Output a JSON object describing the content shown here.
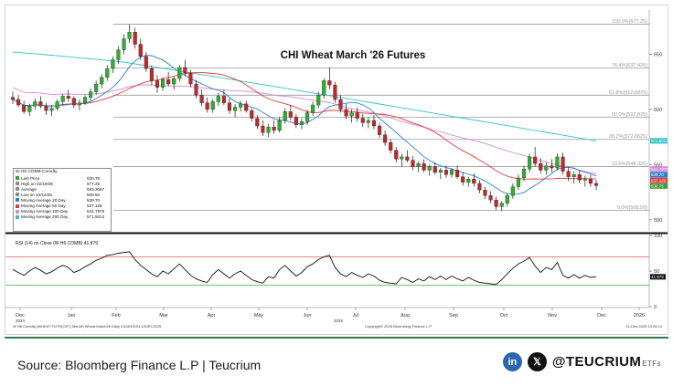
{
  "chart_data": [
    {
      "type": "candlestick",
      "title": "CHI Wheat March '26 Futures",
      "x_tick_labels": [
        "Dec",
        "Jan",
        "Feb",
        "Mar",
        "Apr",
        "May",
        "Jun",
        "Jul",
        "Aug",
        "Sep",
        "Oct",
        "Nov",
        "Dec",
        "2026"
      ],
      "x_year_labels": [
        "2024",
        "2025"
      ],
      "y_tick_labels": [
        "650",
        "600",
        "550",
        "500"
      ],
      "ylim": [
        490,
        690
      ],
      "fibonacci_levels": [
        {
          "label": "100.0%(677.25)",
          "value": 677.25
        },
        {
          "label": "76.4%(637.425)",
          "value": 637.425
        },
        {
          "label": "61.8%(612.8875)",
          "value": 612.8875
        },
        {
          "label": "50.0%(592.875)",
          "value": 592.875
        },
        {
          "label": "38.2%(572.8625)",
          "value": 572.8625
        },
        {
          "label": "23.6%(548.325)",
          "value": 548.325
        },
        {
          "label": "0.0%(508.50)",
          "value": 508.5
        }
      ],
      "candles": [
        {
          "o": 611,
          "h": 616,
          "l": 605,
          "c": 609
        },
        {
          "o": 609,
          "h": 613,
          "l": 602,
          "c": 604
        },
        {
          "o": 604,
          "h": 608,
          "l": 596,
          "c": 598
        },
        {
          "o": 598,
          "h": 605,
          "l": 594,
          "c": 603
        },
        {
          "o": 603,
          "h": 610,
          "l": 600,
          "c": 607
        },
        {
          "o": 607,
          "h": 612,
          "l": 601,
          "c": 603
        },
        {
          "o": 603,
          "h": 606,
          "l": 595,
          "c": 599
        },
        {
          "o": 599,
          "h": 604,
          "l": 594,
          "c": 601
        },
        {
          "o": 601,
          "h": 609,
          "l": 599,
          "c": 607
        },
        {
          "o": 607,
          "h": 614,
          "l": 604,
          "c": 612
        },
        {
          "o": 612,
          "h": 618,
          "l": 607,
          "c": 610
        },
        {
          "o": 610,
          "h": 612,
          "l": 601,
          "c": 604
        },
        {
          "o": 604,
          "h": 609,
          "l": 599,
          "c": 606
        },
        {
          "o": 606,
          "h": 613,
          "l": 604,
          "c": 611
        },
        {
          "o": 611,
          "h": 619,
          "l": 608,
          "c": 616
        },
        {
          "o": 616,
          "h": 626,
          "l": 613,
          "c": 623
        },
        {
          "o": 623,
          "h": 632,
          "l": 619,
          "c": 629
        },
        {
          "o": 629,
          "h": 640,
          "l": 626,
          "c": 637
        },
        {
          "o": 637,
          "h": 648,
          "l": 633,
          "c": 645
        },
        {
          "o": 645,
          "h": 657,
          "l": 641,
          "c": 654
        },
        {
          "o": 654,
          "h": 668,
          "l": 650,
          "c": 664
        },
        {
          "o": 664,
          "h": 677,
          "l": 660,
          "c": 670
        },
        {
          "o": 670,
          "h": 674,
          "l": 655,
          "c": 659
        },
        {
          "o": 659,
          "h": 664,
          "l": 645,
          "c": 648
        },
        {
          "o": 648,
          "h": 652,
          "l": 634,
          "c": 637
        },
        {
          "o": 637,
          "h": 640,
          "l": 622,
          "c": 626
        },
        {
          "o": 626,
          "h": 631,
          "l": 615,
          "c": 620
        },
        {
          "o": 620,
          "h": 629,
          "l": 617,
          "c": 627
        },
        {
          "o": 627,
          "h": 634,
          "l": 621,
          "c": 623
        },
        {
          "o": 623,
          "h": 630,
          "l": 618,
          "c": 628
        },
        {
          "o": 628,
          "h": 640,
          "l": 625,
          "c": 638
        },
        {
          "o": 638,
          "h": 645,
          "l": 630,
          "c": 633
        },
        {
          "o": 633,
          "h": 636,
          "l": 620,
          "c": 623
        },
        {
          "o": 623,
          "h": 627,
          "l": 610,
          "c": 613
        },
        {
          "o": 613,
          "h": 618,
          "l": 603,
          "c": 606
        },
        {
          "o": 606,
          "h": 611,
          "l": 597,
          "c": 600
        },
        {
          "o": 600,
          "h": 609,
          "l": 597,
          "c": 607
        },
        {
          "o": 607,
          "h": 615,
          "l": 603,
          "c": 612
        },
        {
          "o": 612,
          "h": 618,
          "l": 604,
          "c": 606
        },
        {
          "o": 606,
          "h": 610,
          "l": 596,
          "c": 599
        },
        {
          "o": 599,
          "h": 605,
          "l": 593,
          "c": 602
        },
        {
          "o": 602,
          "h": 608,
          "l": 598,
          "c": 605
        },
        {
          "o": 605,
          "h": 608,
          "l": 597,
          "c": 599
        },
        {
          "o": 599,
          "h": 601,
          "l": 589,
          "c": 592
        },
        {
          "o": 592,
          "h": 595,
          "l": 582,
          "c": 585
        },
        {
          "o": 585,
          "h": 590,
          "l": 576,
          "c": 579
        },
        {
          "o": 579,
          "h": 587,
          "l": 575,
          "c": 584
        },
        {
          "o": 584,
          "h": 590,
          "l": 578,
          "c": 581
        },
        {
          "o": 581,
          "h": 593,
          "l": 579,
          "c": 590
        },
        {
          "o": 590,
          "h": 601,
          "l": 587,
          "c": 598
        },
        {
          "o": 598,
          "h": 604,
          "l": 590,
          "c": 593
        },
        {
          "o": 593,
          "h": 596,
          "l": 583,
          "c": 586
        },
        {
          "o": 586,
          "h": 592,
          "l": 582,
          "c": 589
        },
        {
          "o": 589,
          "h": 600,
          "l": 586,
          "c": 597
        },
        {
          "o": 597,
          "h": 607,
          "l": 594,
          "c": 604
        },
        {
          "o": 604,
          "h": 616,
          "l": 601,
          "c": 613
        },
        {
          "o": 613,
          "h": 628,
          "l": 610,
          "c": 626
        },
        {
          "o": 626,
          "h": 638,
          "l": 618,
          "c": 622
        },
        {
          "o": 622,
          "h": 625,
          "l": 606,
          "c": 609
        },
        {
          "o": 609,
          "h": 613,
          "l": 597,
          "c": 600
        },
        {
          "o": 600,
          "h": 605,
          "l": 591,
          "c": 594
        },
        {
          "o": 594,
          "h": 600,
          "l": 588,
          "c": 597
        },
        {
          "o": 597,
          "h": 602,
          "l": 589,
          "c": 592
        },
        {
          "o": 592,
          "h": 596,
          "l": 584,
          "c": 588
        },
        {
          "o": 588,
          "h": 593,
          "l": 583,
          "c": 590
        },
        {
          "o": 590,
          "h": 595,
          "l": 582,
          "c": 585
        },
        {
          "o": 585,
          "h": 588,
          "l": 574,
          "c": 577
        },
        {
          "o": 577,
          "h": 581,
          "l": 567,
          "c": 570
        },
        {
          "o": 570,
          "h": 573,
          "l": 560,
          "c": 563
        },
        {
          "o": 563,
          "h": 566,
          "l": 552,
          "c": 555
        },
        {
          "o": 555,
          "h": 560,
          "l": 548,
          "c": 557
        },
        {
          "o": 557,
          "h": 563,
          "l": 552,
          "c": 554
        },
        {
          "o": 554,
          "h": 558,
          "l": 545,
          "c": 548
        },
        {
          "o": 548,
          "h": 553,
          "l": 543,
          "c": 551
        },
        {
          "o": 551,
          "h": 555,
          "l": 543,
          "c": 545
        },
        {
          "o": 545,
          "h": 550,
          "l": 540,
          "c": 548
        },
        {
          "o": 548,
          "h": 552,
          "l": 541,
          "c": 543
        },
        {
          "o": 543,
          "h": 547,
          "l": 537,
          "c": 545
        },
        {
          "o": 545,
          "h": 549,
          "l": 538,
          "c": 541
        },
        {
          "o": 541,
          "h": 547,
          "l": 538,
          "c": 545
        },
        {
          "o": 545,
          "h": 549,
          "l": 537,
          "c": 539
        },
        {
          "o": 539,
          "h": 543,
          "l": 531,
          "c": 534
        },
        {
          "o": 534,
          "h": 539,
          "l": 530,
          "c": 537
        },
        {
          "o": 537,
          "h": 542,
          "l": 530,
          "c": 533
        },
        {
          "o": 533,
          "h": 536,
          "l": 524,
          "c": 527
        },
        {
          "o": 527,
          "h": 530,
          "l": 519,
          "c": 522
        },
        {
          "o": 522,
          "h": 526,
          "l": 515,
          "c": 518
        },
        {
          "o": 518,
          "h": 521,
          "l": 509,
          "c": 512
        },
        {
          "o": 512,
          "h": 517,
          "l": 508,
          "c": 515
        },
        {
          "o": 515,
          "h": 524,
          "l": 512,
          "c": 522
        },
        {
          "o": 522,
          "h": 533,
          "l": 519,
          "c": 530
        },
        {
          "o": 530,
          "h": 541,
          "l": 527,
          "c": 538
        },
        {
          "o": 538,
          "h": 549,
          "l": 535,
          "c": 546
        },
        {
          "o": 546,
          "h": 560,
          "l": 543,
          "c": 557
        },
        {
          "o": 557,
          "h": 566,
          "l": 548,
          "c": 551
        },
        {
          "o": 551,
          "h": 556,
          "l": 542,
          "c": 545
        },
        {
          "o": 545,
          "h": 552,
          "l": 541,
          "c": 549
        },
        {
          "o": 549,
          "h": 555,
          "l": 543,
          "c": 547
        },
        {
          "o": 547,
          "h": 560,
          "l": 545,
          "c": 557
        },
        {
          "o": 557,
          "h": 561,
          "l": 541,
          "c": 544
        },
        {
          "o": 544,
          "h": 548,
          "l": 535,
          "c": 539
        },
        {
          "o": 539,
          "h": 544,
          "l": 533,
          "c": 541
        },
        {
          "o": 541,
          "h": 545,
          "l": 533,
          "c": 536
        },
        {
          "o": 536,
          "h": 540,
          "l": 530,
          "c": 537
        },
        {
          "o": 537,
          "h": 541,
          "l": 530,
          "c": 533
        },
        {
          "o": 533,
          "h": 536,
          "l": 527,
          "c": 531
        }
      ],
      "moving_averages": [
        {
          "name": "Moving Average 20 Day",
          "value": 539.7,
          "color": "#2f7fd0"
        },
        {
          "name": "Moving Average 50 Day",
          "value": 537.125,
          "color": "#e03b3b"
        },
        {
          "name": "Moving Average 100 Day",
          "value": 541.7975,
          "color": "#d98ad6"
        },
        {
          "name": "Moving Average 200 Day",
          "value": 571.5012,
          "color": "#35c4c4"
        }
      ],
      "legend_placement": "lower-left",
      "right_price_tags": [
        {
          "label": "571.5012",
          "value": 571.5012,
          "color": "#35c4c4"
        },
        {
          "label": "541.7975",
          "value": 541.7975,
          "color": "#d98ad6"
        },
        {
          "label": "539.70",
          "value": 539.7,
          "color": "#2f7fd0"
        },
        {
          "label": "537.125",
          "value": 537.125,
          "color": "#e03b3b"
        },
        {
          "label": "530.75",
          "value": 530.75,
          "color": "#3a9a3a"
        }
      ]
    },
    {
      "type": "line",
      "title": "RSI (14) on Close (W H6 COMB) 41.879",
      "ylim": [
        0,
        100
      ],
      "y_tick_labels": [
        "100",
        "50",
        "0"
      ],
      "overbought": 70,
      "oversold": 30,
      "values": [
        52,
        48,
        44,
        50,
        55,
        51,
        46,
        49,
        54,
        58,
        55,
        48,
        51,
        56,
        60,
        65,
        68,
        72,
        73,
        75,
        76,
        77,
        66,
        58,
        52,
        46,
        42,
        50,
        46,
        53,
        60,
        52,
        44,
        39,
        36,
        34,
        45,
        52,
        46,
        40,
        46,
        50,
        44,
        38,
        35,
        33,
        42,
        40,
        52,
        58,
        50,
        43,
        48,
        56,
        60,
        66,
        70,
        72,
        55,
        46,
        42,
        48,
        44,
        41,
        46,
        43,
        37,
        34,
        33,
        32,
        41,
        38,
        34,
        39,
        36,
        42,
        38,
        43,
        38,
        43,
        39,
        36,
        41,
        37,
        34,
        33,
        32,
        31,
        38,
        46,
        54,
        60,
        64,
        69,
        57,
        48,
        55,
        52,
        62,
        44,
        40,
        45,
        40,
        44,
        41,
        41.879
      ],
      "last_value_tag": "41.879"
    }
  ],
  "legend": {
    "header": "W H6 COMB Comdty",
    "rows": [
      {
        "label": "Last Price",
        "value": "530.75",
        "color": "#3a9a3a"
      },
      {
        "label": "High on 02/19/25",
        "value": "677.25",
        "color": "#8a8a8a"
      },
      {
        "label": "Average",
        "value": "583.3087",
        "color": "#8a8a8a"
      },
      {
        "label": "Low on 10/14/25",
        "value": "508.50",
        "color": "#8a8a8a"
      },
      {
        "label": "Moving Average 20 Day",
        "value": "539.70",
        "color": "#2f7fd0"
      },
      {
        "label": "Moving Average 50 Day",
        "value": "537.125",
        "color": "#e03b3b"
      },
      {
        "label": "Moving Average 100 Day",
        "value": "541.7975",
        "color": "#d98ad6"
      },
      {
        "label": "Moving Average 200 Day",
        "value": "571.5012",
        "color": "#35c4c4"
      }
    ]
  },
  "meta": {
    "left": "W H6 Comdty (WHEAT FUTR(CBT) Mar26) Wheat March26 Daily 23JUN2024-12DEC2025",
    "middle": "Copyright© 2025 Bloomberg Finance L.P.",
    "right": "12-Dec-2025 13:26:14"
  },
  "footer": {
    "source": "Source: Bloomberg Finance L.P | Teucrium",
    "linkedin_glyph": "in",
    "x_glyph": "𝕏",
    "handle": "@TEUCRIUM",
    "handle_suffix": "ETFs",
    "accent_color": "#2e7d4f"
  }
}
